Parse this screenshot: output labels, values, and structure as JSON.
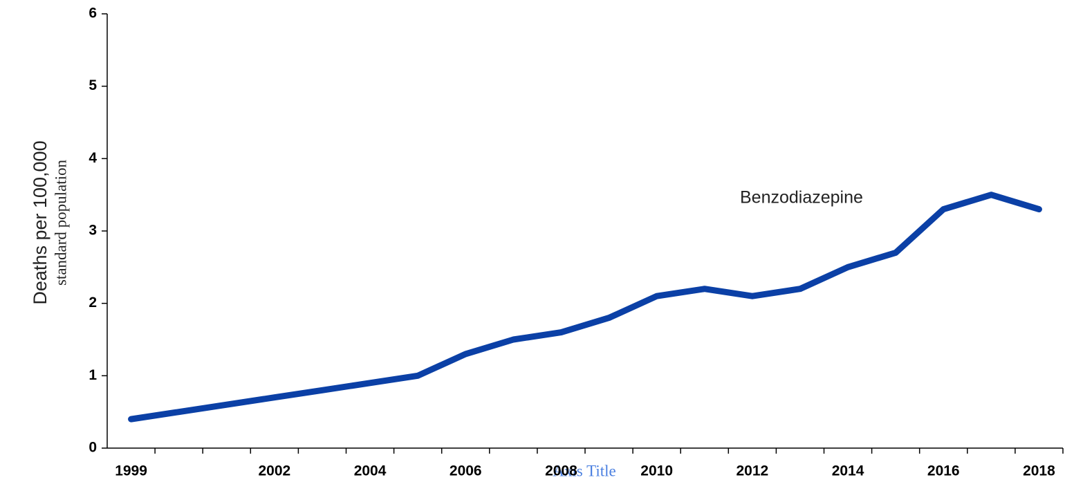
{
  "chart_data": {
    "type": "line",
    "y_axis_label": [
      "Deaths per 100,000",
      "standard population"
    ],
    "x_axis_label": "Axis Title",
    "annotation": "Benzodiazepine",
    "categories": [
      "1999",
      null,
      null,
      "2002",
      null,
      "2004",
      null,
      "2006",
      null,
      "2008",
      null,
      "2010",
      null,
      "2012",
      null,
      "2014",
      null,
      "2016",
      null,
      "2018"
    ],
    "series": [
      {
        "name": "Benzodiazepine",
        "color": "#0b40a6",
        "values": [
          0.4,
          0.5,
          0.6,
          0.7,
          0.8,
          0.9,
          1.0,
          1.3,
          1.5,
          1.6,
          1.8,
          2.1,
          2.2,
          2.1,
          2.2,
          2.5,
          2.7,
          3.3,
          3.5,
          3.3
        ]
      }
    ],
    "ylim": [
      0,
      6
    ],
    "yticks": [
      0,
      1,
      2,
      3,
      4,
      5,
      6
    ],
    "grid": false
  }
}
